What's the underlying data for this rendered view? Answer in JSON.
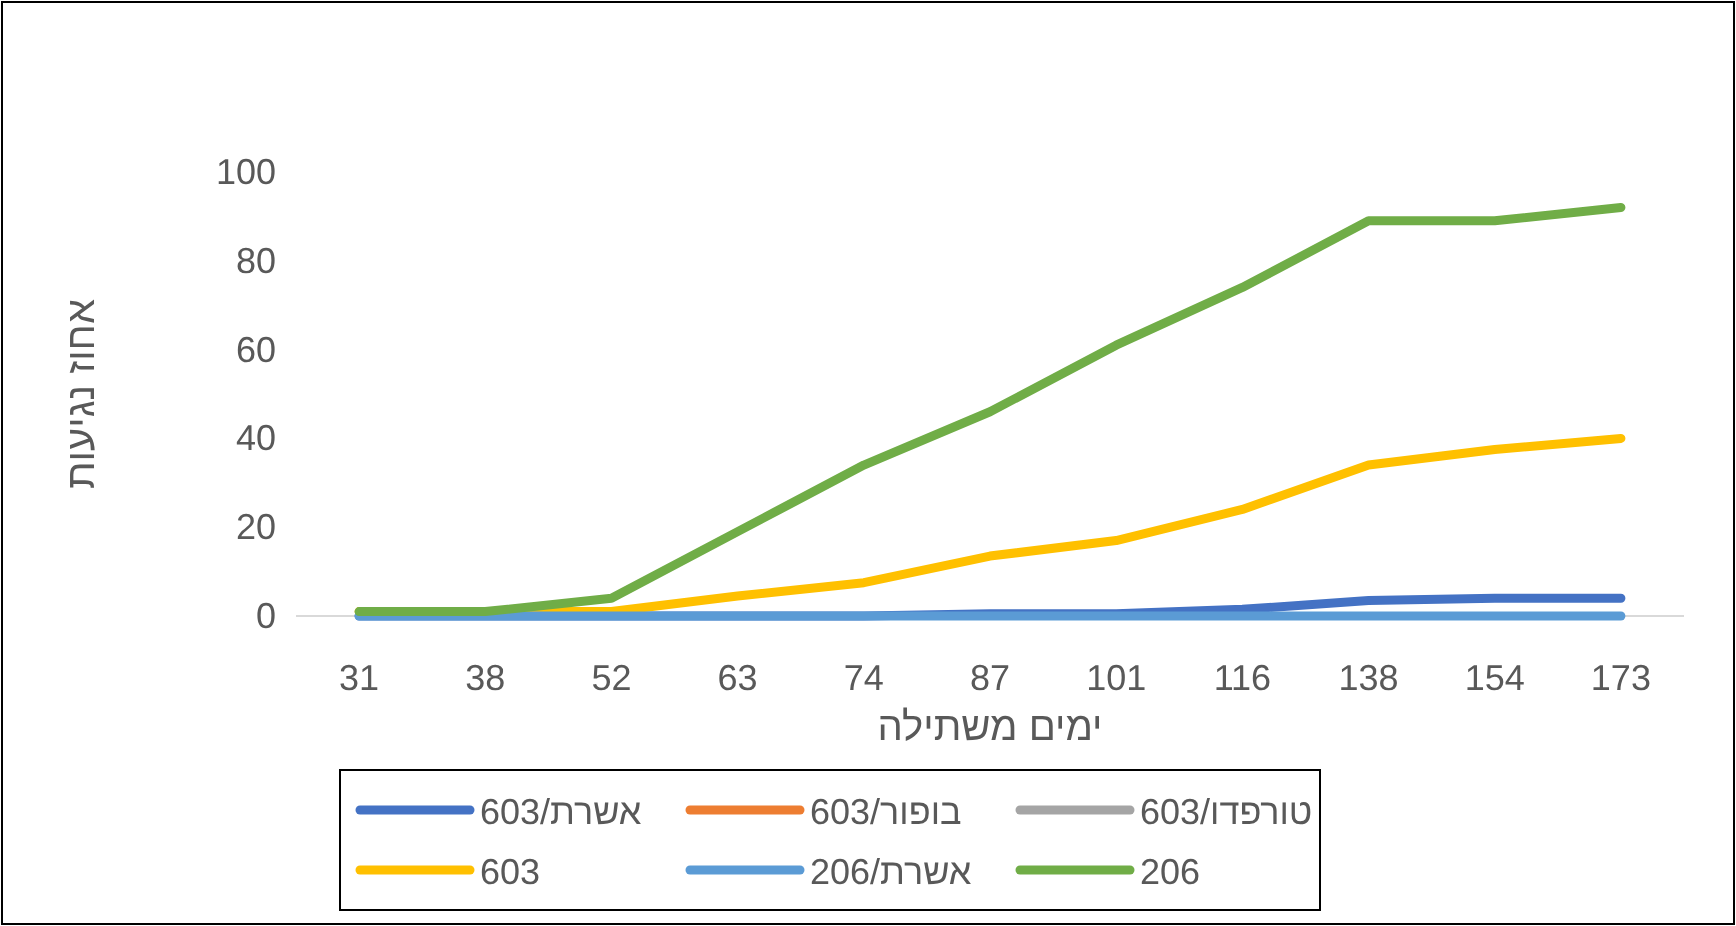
{
  "chart_data": {
    "type": "line",
    "xlabel": "ימים משתילה",
    "ylabel": "אחוז נגיעות",
    "categories": [
      "31",
      "38",
      "52",
      "63",
      "74",
      "87",
      "101",
      "116",
      "138",
      "154",
      "173"
    ],
    "ylim": [
      0,
      100
    ],
    "yticks": [
      0,
      20,
      40,
      60,
      80,
      100
    ],
    "grid": false,
    "legend": "bottom",
    "marker": "none",
    "line_style": "solid",
    "series": [
      {
        "name": "אשרת/603",
        "color": "#4472c4",
        "values": [
          0,
          0,
          0,
          0,
          0,
          0.5,
          0.5,
          1.5,
          3.5,
          4,
          4
        ]
      },
      {
        "name": "בופור/603",
        "color": "#ed7d31",
        "values": [
          null,
          null,
          null,
          null,
          null,
          null,
          null,
          null,
          null,
          null,
          null
        ]
      },
      {
        "name": "טורפדו/603",
        "color": "#a5a5a5",
        "values": [
          null,
          null,
          null,
          null,
          null,
          null,
          null,
          null,
          null,
          null,
          null
        ]
      },
      {
        "name": "603",
        "color": "#ffc000",
        "values": [
          1,
          1,
          1,
          4.5,
          7.5,
          13.5,
          17,
          24,
          34,
          37.5,
          40
        ]
      },
      {
        "name": "אשרת/206",
        "color": "#5b9bd5",
        "values": [
          0,
          0,
          0,
          0,
          0,
          0,
          0,
          0,
          0,
          0,
          0
        ]
      },
      {
        "name": "206",
        "color": "#70ad47",
        "values": [
          1,
          1,
          4,
          19,
          34,
          46,
          61,
          74,
          89,
          89,
          92
        ]
      }
    ]
  }
}
